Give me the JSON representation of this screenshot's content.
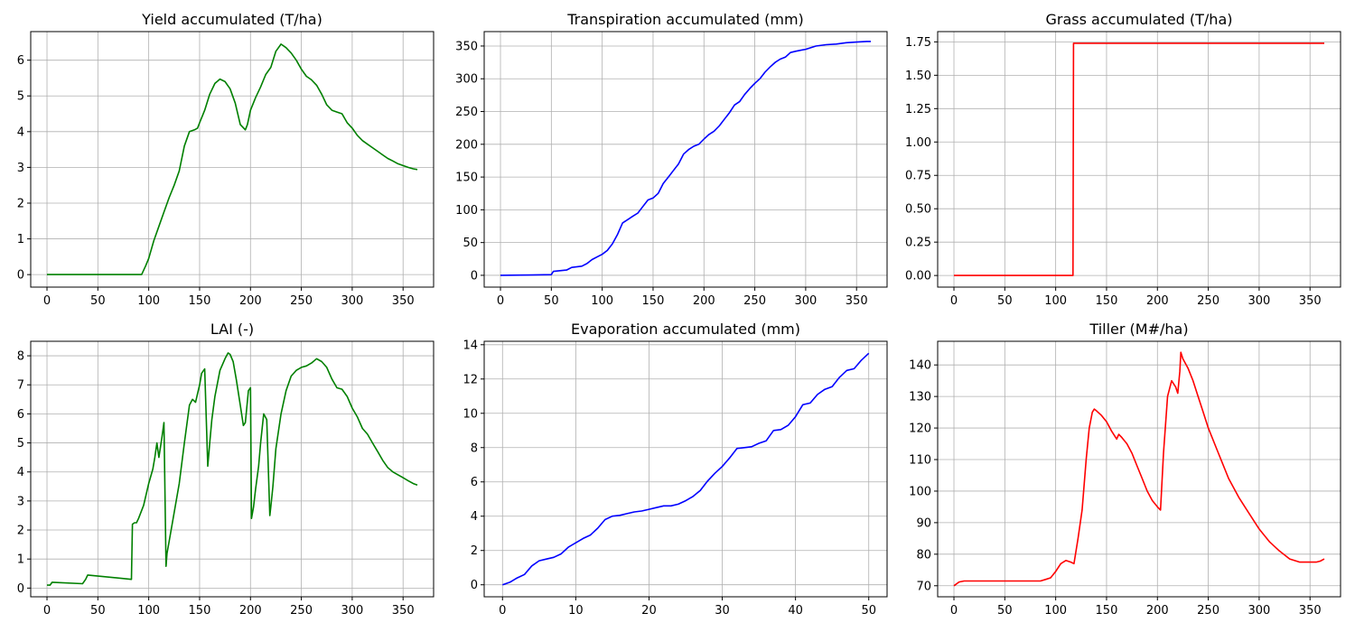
{
  "chart_data": [
    {
      "type": "line",
      "title": "Yield accumulated (T/ha)",
      "xlim": [
        -16,
        380
      ],
      "ylim": [
        -0.35,
        6.8
      ],
      "xticks": [
        0,
        50,
        100,
        150,
        200,
        250,
        300,
        350
      ],
      "yticks": [
        0,
        1,
        2,
        3,
        4,
        5,
        6
      ],
      "ytick_labels": [
        "0",
        "1",
        "2",
        "3",
        "4",
        "5",
        "6"
      ],
      "grid": true,
      "series": [
        {
          "color": "#008000",
          "x": [
            0,
            93,
            97,
            100,
            105,
            110,
            115,
            120,
            125,
            130,
            135,
            140,
            145,
            148,
            150,
            155,
            160,
            165,
            170,
            175,
            180,
            185,
            190,
            195,
            197,
            200,
            205,
            210,
            215,
            220,
            225,
            230,
            235,
            240,
            245,
            250,
            255,
            260,
            265,
            270,
            275,
            280,
            285,
            290,
            295,
            300,
            305,
            310,
            315,
            320,
            325,
            330,
            335,
            340,
            345,
            350,
            355,
            360,
            364
          ],
          "y": [
            0,
            0,
            0.25,
            0.45,
            0.95,
            1.35,
            1.75,
            2.15,
            2.5,
            2.9,
            3.6,
            4.0,
            4.05,
            4.1,
            4.25,
            4.6,
            5.05,
            5.35,
            5.47,
            5.4,
            5.2,
            4.8,
            4.2,
            4.05,
            4.2,
            4.6,
            4.95,
            5.25,
            5.6,
            5.8,
            6.25,
            6.45,
            6.35,
            6.2,
            6.0,
            5.75,
            5.55,
            5.45,
            5.3,
            5.05,
            4.75,
            4.6,
            4.55,
            4.5,
            4.25,
            4.1,
            3.9,
            3.75,
            3.65,
            3.55,
            3.45,
            3.35,
            3.25,
            3.18,
            3.1,
            3.05,
            3.0,
            2.96,
            2.94
          ]
        }
      ]
    },
    {
      "type": "line",
      "title": "Transpiration accumulated (mm)",
      "xlim": [
        -16,
        380
      ],
      "ylim": [
        -18,
        372
      ],
      "xticks": [
        0,
        50,
        100,
        150,
        200,
        250,
        300,
        350
      ],
      "yticks": [
        0,
        50,
        100,
        150,
        200,
        250,
        300,
        350
      ],
      "ytick_labels": [
        "0",
        "50",
        "100",
        "150",
        "200",
        "250",
        "300",
        "350"
      ],
      "grid": true,
      "series": [
        {
          "color": "#0000ff",
          "x": [
            0,
            30,
            50,
            52,
            65,
            70,
            80,
            85,
            90,
            95,
            100,
            105,
            110,
            115,
            120,
            125,
            130,
            135,
            140,
            145,
            150,
            155,
            160,
            165,
            170,
            175,
            180,
            185,
            190,
            195,
            200,
            205,
            210,
            215,
            220,
            225,
            230,
            235,
            240,
            245,
            250,
            255,
            260,
            265,
            270,
            275,
            280,
            285,
            290,
            300,
            310,
            320,
            330,
            340,
            350,
            360,
            364
          ],
          "y": [
            0,
            0.5,
            1,
            6,
            8,
            12,
            14,
            18,
            24,
            28,
            32,
            38,
            48,
            62,
            80,
            85,
            90,
            95,
            105,
            115,
            118,
            125,
            140,
            150,
            160,
            170,
            185,
            192,
            197,
            200,
            208,
            215,
            220,
            228,
            238,
            248,
            260,
            265,
            276,
            285,
            293,
            300,
            310,
            318,
            325,
            330,
            333,
            340,
            342,
            345,
            350,
            352,
            353,
            355,
            356,
            357,
            357
          ]
        }
      ]
    },
    {
      "type": "line",
      "title": "Grass accumulated (T/ha)",
      "xlim": [
        -16,
        380
      ],
      "ylim": [
        -0.087,
        1.827
      ],
      "xticks": [
        0,
        50,
        100,
        150,
        200,
        250,
        300,
        350
      ],
      "yticks": [
        0,
        0.25,
        0.5,
        0.75,
        1.0,
        1.25,
        1.5,
        1.75
      ],
      "ytick_labels": [
        "0.00",
        "0.25",
        "0.50",
        "0.75",
        "1.00",
        "1.25",
        "1.50",
        "1.75"
      ],
      "grid": true,
      "series": [
        {
          "color": "#ff0000",
          "x": [
            0,
            117,
            117.5,
            364
          ],
          "y": [
            0,
            0,
            1.74,
            1.74
          ]
        }
      ]
    },
    {
      "type": "line",
      "title": "LAI (-)",
      "xlim": [
        -16,
        380
      ],
      "ylim": [
        -0.3,
        8.5
      ],
      "xticks": [
        0,
        50,
        100,
        150,
        200,
        250,
        300,
        350
      ],
      "yticks": [
        0,
        1,
        2,
        3,
        4,
        5,
        6,
        7,
        8
      ],
      "ytick_labels": [
        "0",
        "1",
        "2",
        "3",
        "4",
        "5",
        "6",
        "7",
        "8"
      ],
      "grid": true,
      "series": [
        {
          "color": "#008000",
          "x": [
            0,
            3,
            5,
            35,
            38,
            40,
            83,
            84,
            86,
            88,
            90,
            95,
            100,
            104,
            106,
            108,
            110,
            113,
            115,
            117,
            118,
            120,
            125,
            130,
            135,
            140,
            143,
            146,
            148,
            150,
            152,
            155,
            158,
            160,
            162,
            165,
            170,
            175,
            178,
            180,
            183,
            186,
            190,
            193,
            195,
            198,
            200,
            201,
            203,
            205,
            208,
            210,
            213,
            216,
            219,
            220,
            222,
            225,
            230,
            235,
            240,
            245,
            250,
            255,
            260,
            265,
            270,
            275,
            280,
            285,
            290,
            295,
            300,
            305,
            310,
            315,
            320,
            325,
            330,
            335,
            340,
            345,
            350,
            355,
            360,
            364
          ],
          "y": [
            0.1,
            0.1,
            0.2,
            0.15,
            0.3,
            0.45,
            0.3,
            2.2,
            2.25,
            2.25,
            2.4,
            2.85,
            3.6,
            4.1,
            4.5,
            5.0,
            4.5,
            5.2,
            5.7,
            0.75,
            1.2,
            1.6,
            2.6,
            3.6,
            5.0,
            6.3,
            6.5,
            6.4,
            6.7,
            7.0,
            7.4,
            7.55,
            4.2,
            5.0,
            5.8,
            6.6,
            7.5,
            7.9,
            8.1,
            8.05,
            7.8,
            7.2,
            6.3,
            5.6,
            5.7,
            6.8,
            6.9,
            2.4,
            2.8,
            3.4,
            4.2,
            5.0,
            6.0,
            5.8,
            2.5,
            2.8,
            3.5,
            4.8,
            6.0,
            6.8,
            7.3,
            7.5,
            7.6,
            7.65,
            7.75,
            7.9,
            7.8,
            7.6,
            7.2,
            6.9,
            6.85,
            6.6,
            6.2,
            5.9,
            5.5,
            5.3,
            5.0,
            4.7,
            4.4,
            4.15,
            4.0,
            3.9,
            3.8,
            3.7,
            3.6,
            3.55
          ]
        }
      ]
    },
    {
      "type": "line",
      "title": "Evaporation accumulated (mm)",
      "xlim": [
        -2.5,
        52.5
      ],
      "ylim": [
        -0.7,
        14.2
      ],
      "xticks": [
        0,
        10,
        20,
        30,
        40,
        50
      ],
      "yticks": [
        0,
        2,
        4,
        6,
        8,
        10,
        12,
        14
      ],
      "ytick_labels": [
        "0",
        "2",
        "4",
        "6",
        "8",
        "10",
        "12",
        "14"
      ],
      "grid": true,
      "series": [
        {
          "color": "#0000ff",
          "x": [
            0,
            1,
            2,
            3,
            4,
            5,
            6,
            7,
            8,
            9,
            10,
            11,
            12,
            13,
            14,
            15,
            16,
            17,
            18,
            19,
            20,
            21,
            22,
            23,
            24,
            25,
            26,
            27,
            28,
            29,
            30,
            31,
            32,
            33,
            34,
            35,
            36,
            37,
            38,
            39,
            40,
            41,
            42,
            43,
            44,
            45,
            46,
            47,
            48,
            49,
            50
          ],
          "y": [
            0,
            0.15,
            0.4,
            0.6,
            1.1,
            1.4,
            1.5,
            1.6,
            1.8,
            2.2,
            2.45,
            2.7,
            2.9,
            3.3,
            3.8,
            4.0,
            4.05,
            4.15,
            4.25,
            4.3,
            4.4,
            4.5,
            4.6,
            4.6,
            4.7,
            4.9,
            5.15,
            5.5,
            6.05,
            6.5,
            6.9,
            7.4,
            7.95,
            8.0,
            8.05,
            8.25,
            8.4,
            9.0,
            9.05,
            9.3,
            9.8,
            10.5,
            10.6,
            11.1,
            11.4,
            11.55,
            12.1,
            12.5,
            12.6,
            13.1,
            13.5
          ]
        }
      ]
    },
    {
      "type": "line",
      "title": "Tiller (M#/ha)",
      "xlim": [
        -16,
        380
      ],
      "ylim": [
        66.5,
        147.5
      ],
      "xticks": [
        0,
        50,
        100,
        150,
        200,
        250,
        300,
        350
      ],
      "yticks": [
        70,
        80,
        90,
        100,
        110,
        120,
        130,
        140
      ],
      "ytick_labels": [
        "70",
        "80",
        "90",
        "100",
        "110",
        "120",
        "130",
        "140"
      ],
      "grid": true,
      "series": [
        {
          "color": "#ff0000",
          "x": [
            0,
            5,
            10,
            60,
            85,
            90,
            95,
            100,
            105,
            110,
            115,
            118,
            122,
            126,
            130,
            133,
            136,
            138,
            140,
            145,
            150,
            155,
            160,
            162,
            165,
            170,
            175,
            180,
            185,
            190,
            195,
            200,
            203,
            206,
            210,
            214,
            218,
            220,
            222,
            223,
            225,
            230,
            235,
            240,
            245,
            250,
            260,
            270,
            280,
            290,
            300,
            310,
            320,
            330,
            340,
            350,
            356,
            360,
            364
          ],
          "y": [
            70,
            71.2,
            71.5,
            71.5,
            71.5,
            72,
            72.5,
            74.5,
            77,
            78,
            77.5,
            77,
            85,
            94,
            110,
            120,
            125,
            126,
            125.5,
            124,
            122,
            119,
            116.5,
            118,
            117,
            115,
            112,
            108,
            104,
            100,
            97,
            95,
            94,
            112,
            130,
            135,
            133,
            131,
            138,
            144,
            142,
            139,
            135,
            130,
            125,
            120,
            112,
            104,
            98,
            93,
            88,
            84,
            81,
            78.5,
            77.5,
            77.5,
            77.5,
            77.8,
            78.5
          ]
        }
      ]
    }
  ]
}
